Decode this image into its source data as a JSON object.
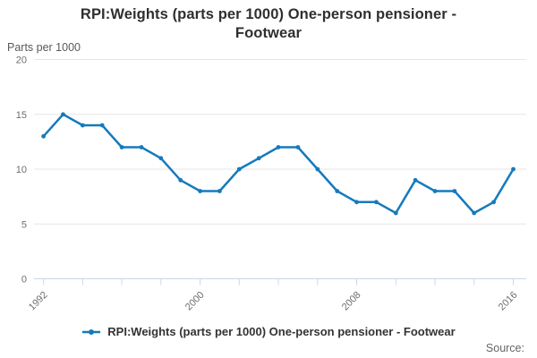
{
  "title": {
    "text": "RPI:Weights (parts per 1000) One-person pensioner - Footwear",
    "line1": "RPI:Weights (parts per 1000) One-person pensioner -",
    "line2": "Footwear"
  },
  "axes": {
    "y_title": "Parts per 1000"
  },
  "legend": {
    "label": "RPI:Weights (parts per 1000) One-person pensioner - Footwear"
  },
  "source": {
    "label": "Source:"
  },
  "colors": {
    "line": "#157abc",
    "grid": "#e6e6e6",
    "axis": "#ccd6eb",
    "tick_text": "#6e6e6e",
    "title_text": "#2f2f2f"
  },
  "chart_data": {
    "type": "line",
    "title": "RPI:Weights (parts per 1000) One-person pensioner - Footwear",
    "xlabel": "",
    "ylabel": "Parts per 1000",
    "x": [
      1992,
      1993,
      1994,
      1995,
      1996,
      1997,
      1998,
      1999,
      2000,
      2001,
      2002,
      2003,
      2004,
      2005,
      2006,
      2007,
      2008,
      2009,
      2010,
      2011,
      2012,
      2013,
      2014,
      2015,
      2016
    ],
    "values": [
      13,
      15,
      14,
      14,
      12,
      12,
      11,
      9,
      8,
      8,
      10,
      11,
      12,
      12,
      10,
      8,
      7,
      7,
      6,
      9,
      8,
      8,
      6,
      7,
      10
    ],
    "ylim": [
      0,
      20
    ],
    "yticks": [
      0,
      5,
      10,
      15,
      20
    ],
    "xtick_step": 2,
    "xtick_labels": [
      1992,
      2000,
      2008,
      2016
    ],
    "grid": "horizontal",
    "legend_position": "bottom",
    "series_name": "RPI:Weights (parts per 1000) One-person pensioner - Footwear"
  }
}
